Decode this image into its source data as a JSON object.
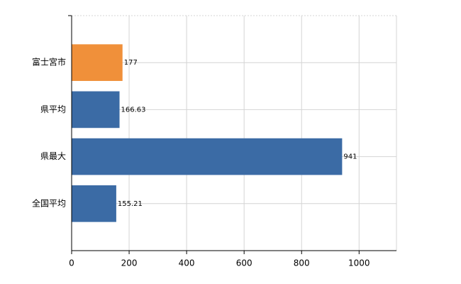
{
  "chart_data": {
    "type": "barh",
    "categories": [
      "富士宮市",
      "県平均",
      "県最大",
      "全国平均"
    ],
    "values": [
      177,
      166.63,
      941,
      155.21
    ],
    "colors": [
      "#f0903a",
      "#3b6ba5",
      "#3b6ba5",
      "#3b6ba5"
    ],
    "xlim": [
      0,
      1130
    ],
    "xticks": [
      0,
      200,
      400,
      600,
      800,
      1000
    ],
    "grid": true
  }
}
